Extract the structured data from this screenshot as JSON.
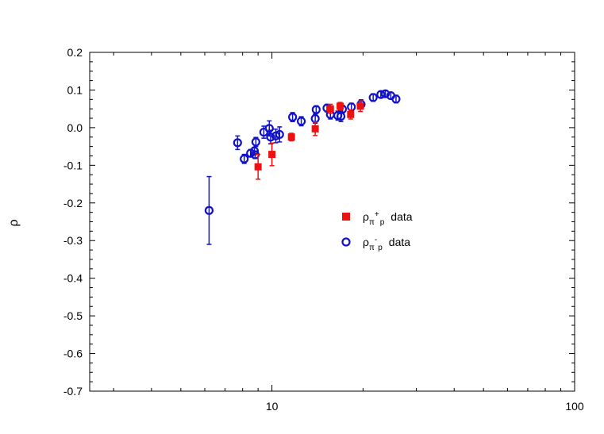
{
  "chart_data": {
    "type": "scatter",
    "title": "",
    "xlabel": "",
    "ylabel": "ρ",
    "xscale": "log",
    "xlim": [
      2.5,
      100
    ],
    "ylim": [
      -0.7,
      0.2
    ],
    "xticks": [
      10,
      100
    ],
    "yticks": [
      0.2,
      0.1,
      0.0,
      -0.1,
      -0.2,
      -0.3,
      -0.4,
      -0.5,
      -0.6,
      -0.7
    ],
    "ytick_labels": [
      "0.2",
      "0.1",
      "0.0",
      "-0.1",
      "-0.2",
      "-0.3",
      "-0.4",
      "-0.5",
      "-0.6",
      "-0.7"
    ],
    "xtick_labels": [
      "10",
      "100"
    ],
    "grid": false,
    "legend_position": "center-right",
    "series": [
      {
        "key": "pi_plus_p",
        "legend": {
          "symbol": "ρ",
          "sub_pi": "π",
          "sup": "+",
          "sub_p": "p",
          "suffix": "data"
        },
        "marker": "filled-square",
        "color": "#ee1111",
        "points": [
          {
            "x": 9.0,
            "y": -0.104,
            "err": 0.033
          },
          {
            "x": 10.0,
            "y": -0.071,
            "err": 0.03
          },
          {
            "x": 11.6,
            "y": -0.025,
            "err": 0.01
          },
          {
            "x": 13.9,
            "y": -0.003,
            "err": 0.018
          },
          {
            "x": 15.6,
            "y": 0.05,
            "err": 0.012
          },
          {
            "x": 16.8,
            "y": 0.057,
            "err": 0.01
          },
          {
            "x": 18.2,
            "y": 0.035,
            "err": 0.012
          },
          {
            "x": 19.6,
            "y": 0.057,
            "err": 0.014
          }
        ]
      },
      {
        "key": "pi_minus_p",
        "legend": {
          "symbol": "ρ",
          "sub_pi": "π",
          "sup": "-",
          "sub_p": "p",
          "suffix": "data"
        },
        "marker": "open-circle",
        "color": "#1111cc",
        "points": [
          {
            "x": 6.2,
            "y": -0.22,
            "err": 0.09
          },
          {
            "x": 7.7,
            "y": -0.04,
            "err": 0.018
          },
          {
            "x": 8.1,
            "y": -0.083,
            "err": 0.012
          },
          {
            "x": 8.5,
            "y": -0.068,
            "err": 0.01
          },
          {
            "x": 8.75,
            "y": -0.062,
            "err": 0.01
          },
          {
            "x": 8.8,
            "y": -0.072,
            "err": 0.01
          },
          {
            "x": 8.85,
            "y": -0.038,
            "err": 0.012
          },
          {
            "x": 9.4,
            "y": -0.012,
            "err": 0.016
          },
          {
            "x": 9.8,
            "y": -0.002,
            "err": 0.02
          },
          {
            "x": 9.9,
            "y": -0.025,
            "err": 0.018
          },
          {
            "x": 10.3,
            "y": -0.022,
            "err": 0.018
          },
          {
            "x": 10.6,
            "y": -0.018,
            "err": 0.02
          },
          {
            "x": 11.7,
            "y": 0.028,
            "err": 0.012
          },
          {
            "x": 12.5,
            "y": 0.017,
            "err": 0.012
          },
          {
            "x": 13.9,
            "y": 0.024,
            "err": 0.012
          },
          {
            "x": 14.0,
            "y": 0.048,
            "err": 0.01
          },
          {
            "x": 15.2,
            "y": 0.052,
            "err": 0.01
          },
          {
            "x": 15.6,
            "y": 0.035,
            "err": 0.012
          },
          {
            "x": 16.5,
            "y": 0.032,
            "err": 0.012
          },
          {
            "x": 16.9,
            "y": 0.03,
            "err": 0.014
          },
          {
            "x": 17.1,
            "y": 0.049,
            "err": 0.01
          },
          {
            "x": 18.3,
            "y": 0.055,
            "err": 0.01
          },
          {
            "x": 19.7,
            "y": 0.062,
            "err": 0.012
          },
          {
            "x": 21.6,
            "y": 0.08,
            "err": 0.01
          },
          {
            "x": 22.9,
            "y": 0.088,
            "err": 0.008
          },
          {
            "x": 23.7,
            "y": 0.09,
            "err": 0.008
          },
          {
            "x": 24.7,
            "y": 0.085,
            "err": 0.008
          },
          {
            "x": 25.7,
            "y": 0.076,
            "err": 0.01
          }
        ]
      }
    ]
  }
}
